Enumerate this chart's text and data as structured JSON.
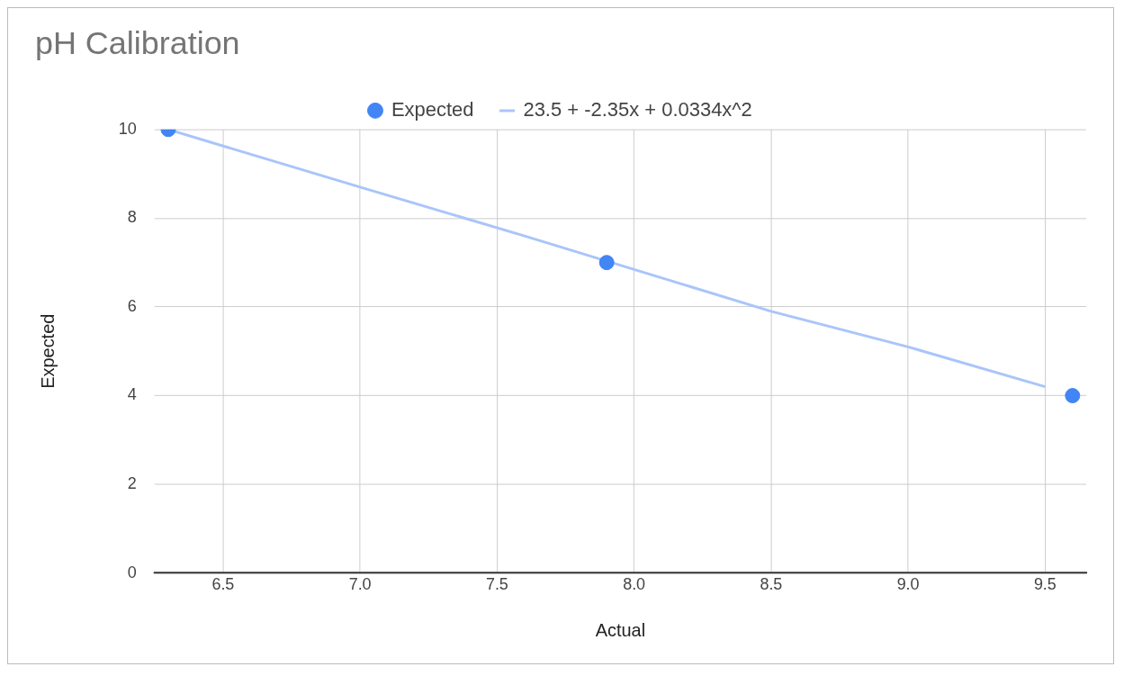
{
  "chart_data": {
    "type": "scatter",
    "title": "pH Calibration",
    "xlabel": "Actual",
    "ylabel": "Expected",
    "xlim": [
      6.25,
      9.65
    ],
    "xticks": [
      {
        "value": 6.5,
        "label": "6.5"
      },
      {
        "value": 7,
        "label": "7.0"
      },
      {
        "value": 7.5,
        "label": "7.5"
      },
      {
        "value": 8,
        "label": "8.0"
      },
      {
        "value": 8.5,
        "label": "8.5"
      },
      {
        "value": 9,
        "label": "9.0"
      },
      {
        "value": 9.5,
        "label": "9.5"
      }
    ],
    "ylim": [
      0,
      10
    ],
    "yticks": [
      0,
      2,
      4,
      6,
      8,
      10
    ],
    "grid": true,
    "legend": "top",
    "series": [
      {
        "name": "Expected",
        "type": "scatter",
        "marker": "circle",
        "color": "#4285f4",
        "x": [
          6.3,
          7.9,
          9.6
        ],
        "values": [
          10,
          7,
          4
        ]
      },
      {
        "name": "23.5 + -2.35x + 0.0334x^2",
        "type": "line",
        "marker": "none",
        "color": "#a9c5fa",
        "x": [
          6.3,
          7.0,
          7.6,
          8.5,
          9.0,
          9.5
        ],
        "values": [
          10.0,
          8.7,
          7.6,
          5.9,
          5.1,
          4.2
        ]
      }
    ]
  }
}
